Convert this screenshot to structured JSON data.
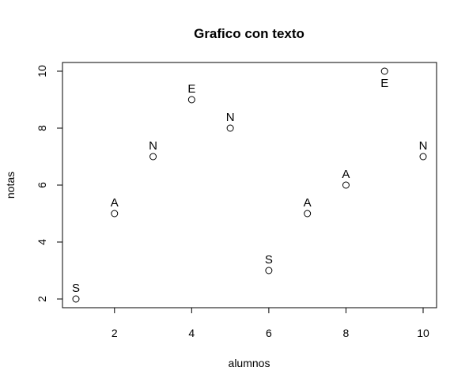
{
  "chart_data": {
    "type": "scatter",
    "title": "Grafico con texto",
    "xlabel": "alumnos",
    "ylabel": "notas",
    "xlim": [
      1,
      10
    ],
    "ylim": [
      2,
      10
    ],
    "x_ticks": [
      2,
      4,
      6,
      8,
      10
    ],
    "y_ticks": [
      2,
      4,
      6,
      8,
      10
    ],
    "x_tick_labels": [
      "2",
      "4",
      "6",
      "8",
      "10"
    ],
    "y_tick_labels": [
      "2",
      "4",
      "6",
      "8",
      "10"
    ],
    "grid": false,
    "marker": "open-circle",
    "points": [
      {
        "x": 1,
        "y": 2,
        "label": "S",
        "label_pos": "above"
      },
      {
        "x": 2,
        "y": 5,
        "label": "A",
        "label_pos": "above"
      },
      {
        "x": 3,
        "y": 7,
        "label": "N",
        "label_pos": "above"
      },
      {
        "x": 4,
        "y": 9,
        "label": "E",
        "label_pos": "above"
      },
      {
        "x": 5,
        "y": 8,
        "label": "N",
        "label_pos": "above"
      },
      {
        "x": 6,
        "y": 3,
        "label": "S",
        "label_pos": "above"
      },
      {
        "x": 7,
        "y": 5,
        "label": "A",
        "label_pos": "above"
      },
      {
        "x": 8,
        "y": 6,
        "label": "A",
        "label_pos": "above"
      },
      {
        "x": 9,
        "y": 10,
        "label": "E",
        "label_pos": "below"
      },
      {
        "x": 10,
        "y": 7,
        "label": "N",
        "label_pos": "above"
      }
    ]
  }
}
